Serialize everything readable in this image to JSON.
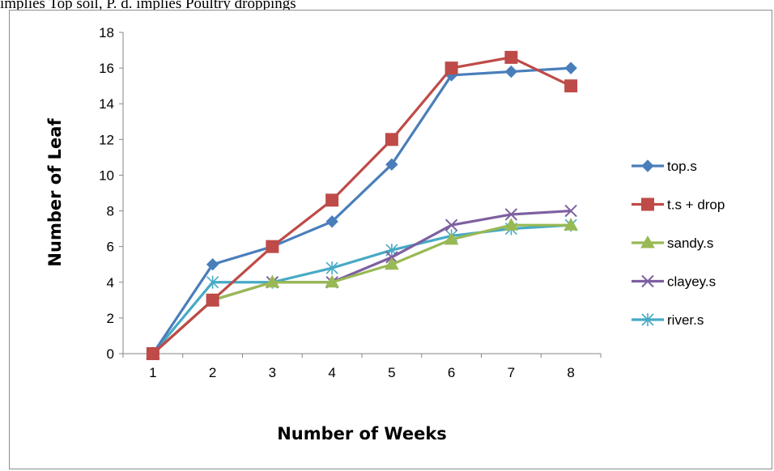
{
  "caption": "implies Top soil, P. d. implies Poultry droppings",
  "chart_data": {
    "type": "line",
    "title": "",
    "xlabel": "Number of Weeks",
    "ylabel": "Number of Leaf",
    "categories": [
      "1",
      "2",
      "3",
      "4",
      "5",
      "6",
      "7",
      "8"
    ],
    "ylim": [
      0,
      18
    ],
    "yticks": [
      0,
      2,
      4,
      6,
      8,
      10,
      12,
      14,
      16,
      18
    ],
    "grid": false,
    "legend_position": "right",
    "series": [
      {
        "name": "top.s",
        "color": "#4a7ebb",
        "marker": "diamond",
        "values": [
          0,
          5,
          6,
          7.4,
          10.6,
          15.6,
          15.8,
          16
        ]
      },
      {
        "name": "t.s + drop",
        "color": "#be4b48",
        "marker": "square",
        "values": [
          0,
          3,
          6,
          8.6,
          12,
          16,
          16.6,
          15
        ]
      },
      {
        "name": "sandy.s",
        "color": "#98b954",
        "marker": "triangle",
        "values": [
          0,
          3,
          4,
          4,
          5,
          6.4,
          7.2,
          7.2
        ]
      },
      {
        "name": "clayey.s",
        "color": "#7d60a0",
        "marker": "x",
        "values": [
          0,
          3,
          4,
          4,
          5.4,
          7.2,
          7.8,
          8
        ]
      },
      {
        "name": "river.s",
        "color": "#46aac5",
        "marker": "star",
        "values": [
          0,
          4,
          4,
          4.8,
          5.8,
          6.6,
          7,
          7.2
        ]
      }
    ]
  }
}
